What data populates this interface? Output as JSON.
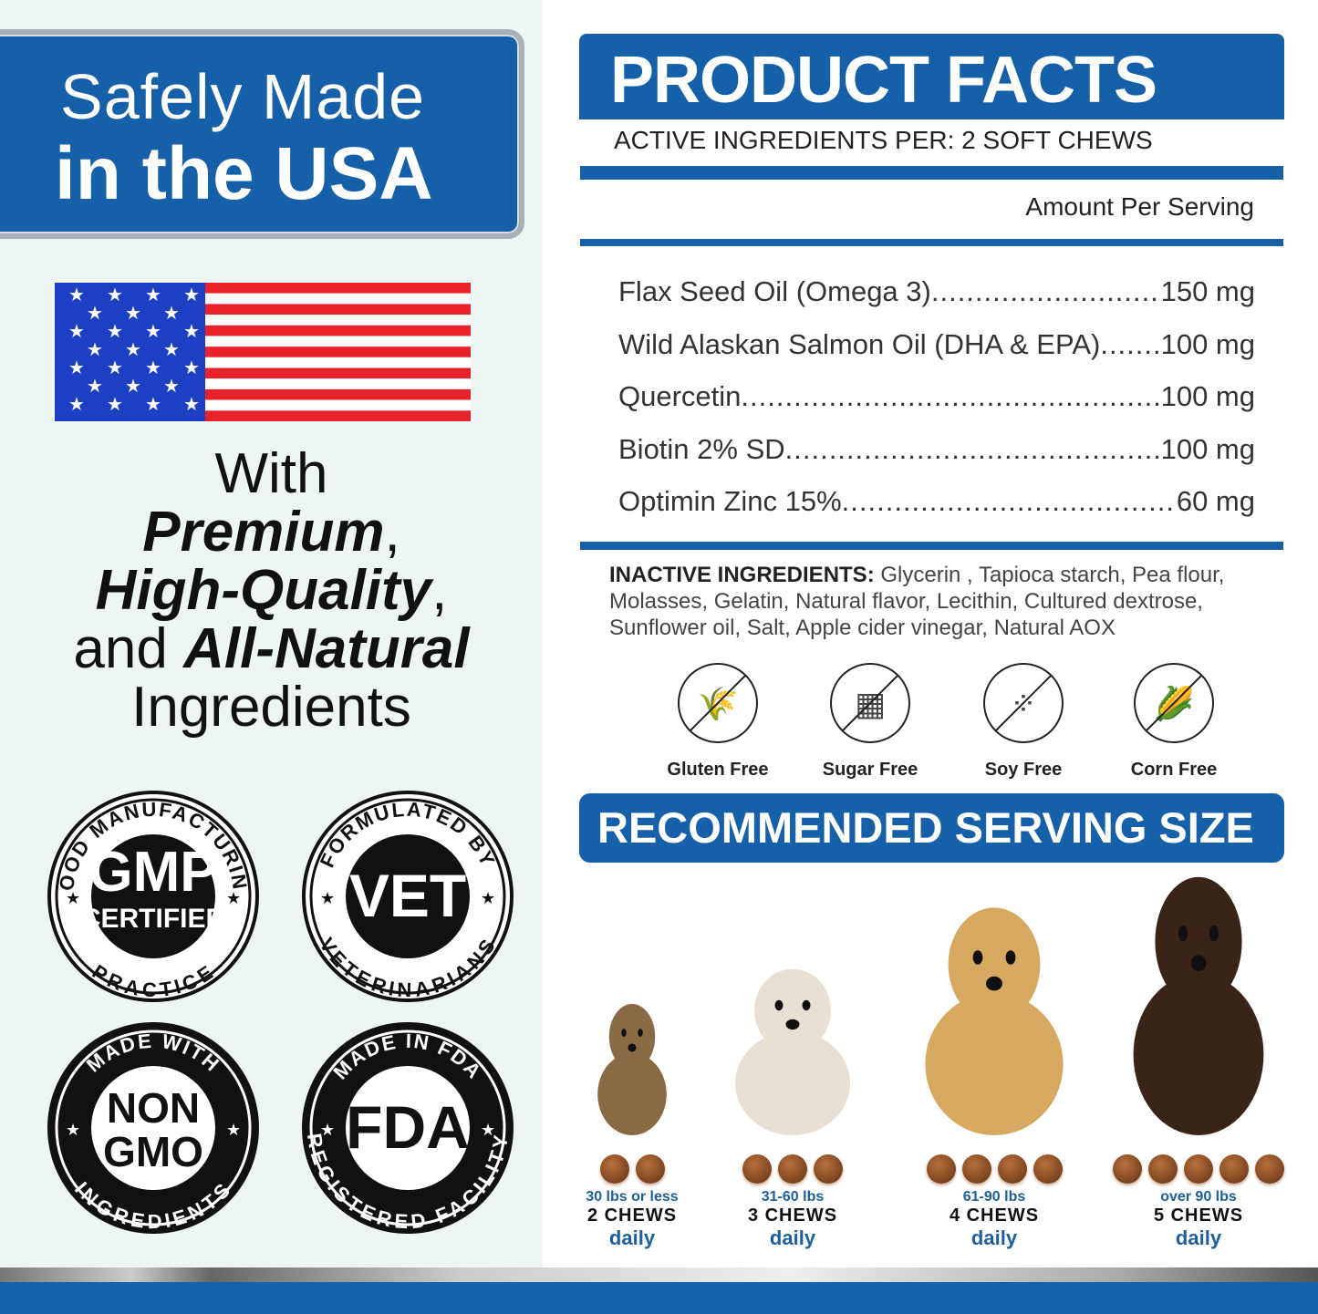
{
  "left": {
    "banner": {
      "line1": "Safely Made",
      "line2": "in the USA"
    },
    "with": {
      "w1": "With",
      "w2": "Premium",
      "w2b": ",",
      "w3": "High-Quality",
      "w3b": ",",
      "w4a": "and ",
      "w4": "All-Natural",
      "w5": "Ingredients"
    },
    "badges": [
      {
        "top": "GOOD MANUFACTURING",
        "center1": "GMP",
        "center2": "CERTIFIED",
        "bottom": "PRACTICE"
      },
      {
        "top": "FORMULATED BY",
        "center1": "VET",
        "bottom": "VETERINARIANS"
      },
      {
        "top": "MADE WITH",
        "center1": "NON",
        "center2": "GMO",
        "bottom": "INGREDIENTS"
      },
      {
        "top": "MADE IN FDA",
        "center1": "FDA",
        "bottom": "REGISTERED FACILITY"
      }
    ]
  },
  "facts": {
    "title": "PRODUCT FACTS",
    "subtitle": "ACTIVE INGREDIENTS PER: 2 SOFT CHEWS",
    "amount_header": "Amount Per Serving",
    "ingredients": [
      {
        "name": "Flax Seed Oil (Omega 3)",
        "amount": "150 mg"
      },
      {
        "name": "Wild Alaskan Salmon Oil (DHA & EPA)",
        "amount": "100 mg"
      },
      {
        "name": "Quercetin",
        "amount": "100 mg"
      },
      {
        "name": "Biotin 2% SD",
        "amount": "100 mg"
      },
      {
        "name": "Optimin Zinc 15%",
        "amount": "60 mg"
      }
    ],
    "inactive_label": "INACTIVE INGREDIENTS:",
    "inactive_text": " Glycerin , Tapioca starch, Pea flour, Molasses, Gelatin, Natural flavor, Lecithin, Cultured dextrose, Sunflower oil, Salt, Apple cider vinegar, Natural AOX",
    "free_from": [
      {
        "label": "Gluten Free",
        "icon": "wheat-crossed-icon"
      },
      {
        "label": "Sugar Free",
        "icon": "sugar-cubes-crossed-icon"
      },
      {
        "label": "Soy Free",
        "icon": "soybeans-crossed-icon"
      },
      {
        "label": "Corn Free",
        "icon": "corn-crossed-icon"
      }
    ]
  },
  "serving": {
    "title": "RECOMMENDED SERVING SIZE",
    "sizes": [
      {
        "weight": "30 lbs or less",
        "chews": "2 CHEWS",
        "freq": "daily",
        "count": 2
      },
      {
        "weight": "31-60 lbs",
        "chews": "3 CHEWS",
        "freq": "daily",
        "count": 3
      },
      {
        "weight": "61-90 lbs",
        "chews": "4 CHEWS",
        "freq": "daily",
        "count": 4
      },
      {
        "weight": "over 90 lbs",
        "chews": "5 CHEWS",
        "freq": "daily",
        "count": 5
      }
    ]
  },
  "colors": {
    "brand_blue": "#1660a9",
    "chew_brown": "#8a4d24",
    "flag_red": "#e8222a",
    "flag_blue": "#1d3fc4"
  }
}
